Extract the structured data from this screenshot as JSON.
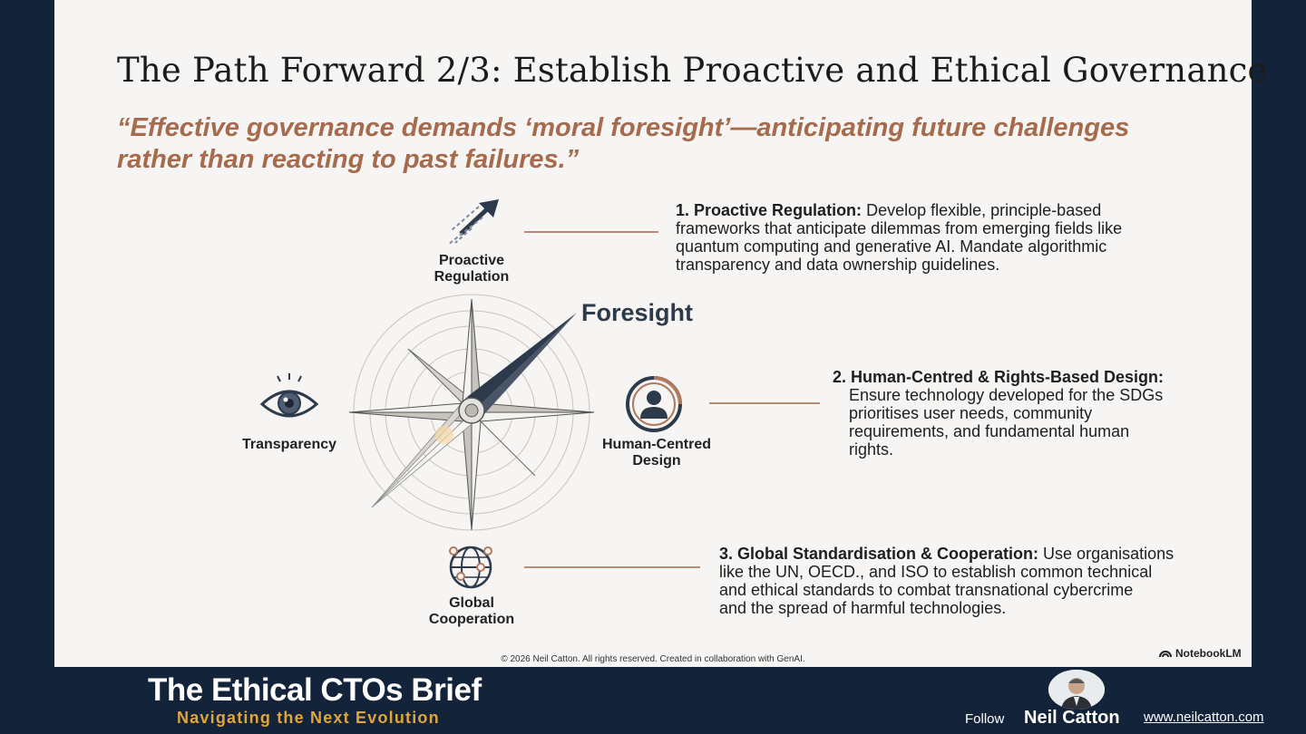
{
  "slide": {
    "title": "The Path Forward 2/3: Establish Proactive and Ethical Governance",
    "quote_line1": "“Effective governance demands ‘moral foresight’—anticipating future challenges",
    "quote_line2": "rather than reacting to past failures.”",
    "center_label": "Foresight",
    "nodes": {
      "proactive": {
        "line1": "Proactive",
        "line2": "Regulation"
      },
      "transparency": {
        "line1": "Transparency"
      },
      "human": {
        "line1": "Human-Centred",
        "line2": "Design"
      },
      "global": {
        "line1": "Global",
        "line2": "Cooperation"
      }
    },
    "points": [
      {
        "heading": "1. Proactive Regulation:",
        "lines": [
          "Develop flexible, principle-based",
          "frameworks that anticipate dilemmas from emerging fields like",
          "quantum computing and generative AI. Mandate algorithmic",
          "transparency and data ownership guidelines."
        ]
      },
      {
        "heading": "2. Human-Centred & Rights-Based Design:",
        "lines": [
          "Ensure technology developed for the SDGs",
          "prioritises user needs, community",
          "requirements, and fundamental human",
          "rights."
        ]
      },
      {
        "heading": "3. Global Standardisation & Cooperation:",
        "lines": [
          "Use organisations",
          "like the UN, OECD., and ISO to establish common technical",
          "and ethical standards to combat transnational cybercrime",
          "and the spread of harmful technologies."
        ]
      }
    ],
    "copyright": "© 2026 Neil Catton. All rights reserved. Created in collaboration with GenAI.",
    "notebooklm": "NotebookLM"
  },
  "footer": {
    "brand_title": "The Ethical CTOs Brief",
    "brand_subtitle": "Navigating the Next Evolution",
    "follow_label": "Follow",
    "author_name": "Neil Catton",
    "website": "www.neilcatton.com"
  },
  "colors": {
    "background": "#13233a",
    "slide": "#f6f5f3",
    "quote": "#a66a4c",
    "accent_gold": "#e0a53d",
    "navy": "#2d3a4c"
  }
}
